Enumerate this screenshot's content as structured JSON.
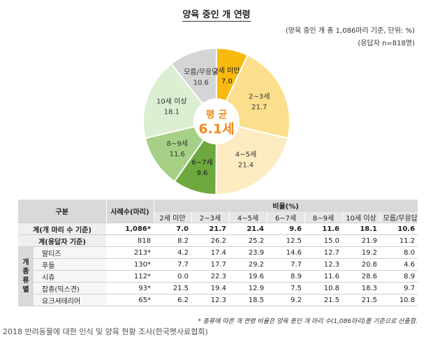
{
  "header": {
    "title": "양육 중인 개 연령",
    "subtitle_base": "(양육 중인 개 총 1,086마리 기준, 단위: %)",
    "subtitle_respondents": "(응답자 n=818명)"
  },
  "chart_data": {
    "type": "pie",
    "center_label": "평 균",
    "center_value": "6.1세",
    "slices": [
      {
        "label": "2세 미만",
        "value": 7.0,
        "color": "#f9b90f"
      },
      {
        "label": "2~3세",
        "value": 21.7,
        "color": "#fbdf8d"
      },
      {
        "label": "4~5세",
        "value": 21.4,
        "color": "#fdebc1"
      },
      {
        "label": "6~7세",
        "value": 9.6,
        "color": "#6ea940"
      },
      {
        "label": "8~9세",
        "value": 11.6,
        "color": "#a6d085"
      },
      {
        "label": "10세 이상",
        "value": 18.1,
        "color": "#dcefd2"
      },
      {
        "label": "모름/무응답",
        "value": 10.6,
        "color": "#d5d5d5"
      }
    ],
    "center_text_color": "#f28a1c"
  },
  "table": {
    "col_header_group": "구분",
    "col_header_count": "사례수(마리)",
    "col_header_ratio": "비율(%)",
    "ratio_columns": [
      "2세 미만",
      "2~3세",
      "4~5세",
      "6~7세",
      "8~9세",
      "10세 이상",
      "모름/무응답"
    ],
    "rows_total": [
      {
        "label": "계(개 마리 수 기준)",
        "count": "1,086*",
        "values": [
          "7.0",
          "21.7",
          "21.4",
          "9.6",
          "11.6",
          "18.1",
          "10.6"
        ]
      },
      {
        "label": "계(응답자 기준)",
        "count": "818",
        "values": [
          "8.2",
          "26.2",
          "25.2",
          "12.5",
          "15.0",
          "21.9",
          "11.2"
        ]
      }
    ],
    "breed_group_label": "개 종류별",
    "rows_breed": [
      {
        "label": "말티즈",
        "count": "213*",
        "values": [
          "4.2",
          "17.4",
          "23.9",
          "14.6",
          "12.7",
          "19.2",
          "8.0"
        ]
      },
      {
        "label": "푸들",
        "count": "130*",
        "values": [
          "7.7",
          "17.7",
          "29.2",
          "7.7",
          "12.3",
          "20.8",
          "4.6"
        ]
      },
      {
        "label": "시츄",
        "count": "112*",
        "values": [
          "0.0",
          "22.3",
          "19.6",
          "8.9",
          "11.6",
          "28.6",
          "8.9"
        ]
      },
      {
        "label": "잡종(믹스견)",
        "count": "93*",
        "values": [
          "21.5",
          "19.4",
          "12.9",
          "7.5",
          "10.8",
          "18.3",
          "9.7"
        ]
      },
      {
        "label": "요크셔테리어",
        "count": "65*",
        "values": [
          "6.2",
          "12.3",
          "18.5",
          "9.2",
          "21.5",
          "21.5",
          "10.8"
        ]
      }
    ]
  },
  "footnote": "* 종류에 따른 개 연령 비율은 양육 중인 개 마리 수(1,086마리)를 기준으로 산출함.",
  "source": "2018 반려동물에 대한 인식 및 양육 현황 조사(한국펫사료협회)"
}
